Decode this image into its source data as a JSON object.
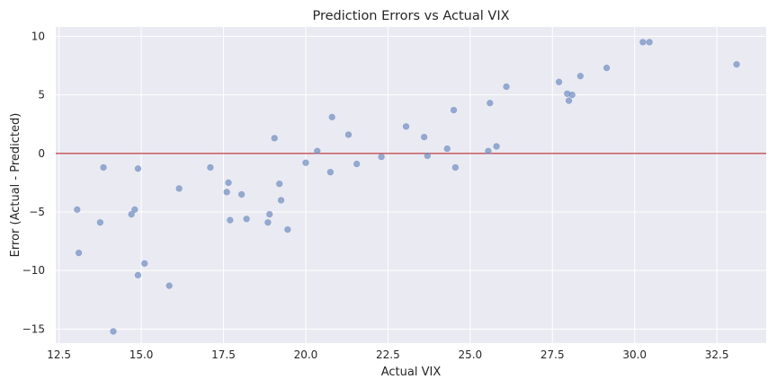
{
  "chart_data": {
    "type": "scatter",
    "title": "Prediction Errors vs Actual VIX",
    "xlabel": "Actual VIX",
    "ylabel": "Error (Actual - Predicted)",
    "xlim": [
      12.4,
      34.0
    ],
    "ylim": [
      -16.2,
      10.8
    ],
    "xticks": [
      12.5,
      15.0,
      17.5,
      20.0,
      22.5,
      25.0,
      27.5,
      30.0,
      32.5
    ],
    "xtick_labels": [
      "12.5",
      "15.0",
      "17.5",
      "20.0",
      "22.5",
      "25.0",
      "27.5",
      "30.0",
      "32.5"
    ],
    "yticks": [
      10,
      5,
      0,
      -5,
      -10,
      -15
    ],
    "ytick_labels": [
      "10",
      "5",
      "0",
      "−5",
      "−10",
      "−15"
    ],
    "grid": true,
    "reference_line": {
      "y": 0,
      "color": "#c44e52"
    },
    "colors": {
      "background": "#eaeaf2",
      "point": "#4c72b0",
      "reference": "#c44e52"
    },
    "points": [
      {
        "x": 13.05,
        "y": -4.8
      },
      {
        "x": 13.1,
        "y": -8.5
      },
      {
        "x": 13.75,
        "y": -5.9
      },
      {
        "x": 13.85,
        "y": -1.2
      },
      {
        "x": 14.15,
        "y": -15.2
      },
      {
        "x": 14.7,
        "y": -5.2
      },
      {
        "x": 14.8,
        "y": -4.8
      },
      {
        "x": 14.9,
        "y": -1.3
      },
      {
        "x": 14.9,
        "y": -10.4
      },
      {
        "x": 15.1,
        "y": -9.4
      },
      {
        "x": 15.85,
        "y": -11.3
      },
      {
        "x": 16.15,
        "y": -3.0
      },
      {
        "x": 17.1,
        "y": -1.2
      },
      {
        "x": 17.6,
        "y": -3.3
      },
      {
        "x": 17.65,
        "y": -2.5
      },
      {
        "x": 17.7,
        "y": -5.7
      },
      {
        "x": 18.05,
        "y": -3.5
      },
      {
        "x": 18.2,
        "y": -5.6
      },
      {
        "x": 18.85,
        "y": -5.9
      },
      {
        "x": 18.9,
        "y": -5.2
      },
      {
        "x": 19.05,
        "y": 1.3
      },
      {
        "x": 19.2,
        "y": -2.6
      },
      {
        "x": 19.25,
        "y": -4.0
      },
      {
        "x": 19.45,
        "y": -6.5
      },
      {
        "x": 20.0,
        "y": -0.8
      },
      {
        "x": 20.35,
        "y": 0.2
      },
      {
        "x": 20.75,
        "y": -1.6
      },
      {
        "x": 20.8,
        "y": 3.1
      },
      {
        "x": 21.3,
        "y": 1.6
      },
      {
        "x": 21.55,
        "y": -0.9
      },
      {
        "x": 22.3,
        "y": -0.3
      },
      {
        "x": 23.05,
        "y": 2.3
      },
      {
        "x": 23.6,
        "y": 1.4
      },
      {
        "x": 23.7,
        "y": -0.2
      },
      {
        "x": 24.3,
        "y": 0.4
      },
      {
        "x": 24.5,
        "y": 3.7
      },
      {
        "x": 24.55,
        "y": -1.2
      },
      {
        "x": 25.55,
        "y": 0.2
      },
      {
        "x": 25.6,
        "y": 4.3
      },
      {
        "x": 25.8,
        "y": 0.6
      },
      {
        "x": 26.1,
        "y": 5.7
      },
      {
        "x": 27.7,
        "y": 6.1
      },
      {
        "x": 27.95,
        "y": 5.1
      },
      {
        "x": 28.0,
        "y": 4.5
      },
      {
        "x": 28.1,
        "y": 5.0
      },
      {
        "x": 28.35,
        "y": 6.6
      },
      {
        "x": 29.15,
        "y": 7.3
      },
      {
        "x": 30.25,
        "y": 9.5
      },
      {
        "x": 30.45,
        "y": 9.5
      },
      {
        "x": 33.1,
        "y": 7.6
      }
    ]
  }
}
